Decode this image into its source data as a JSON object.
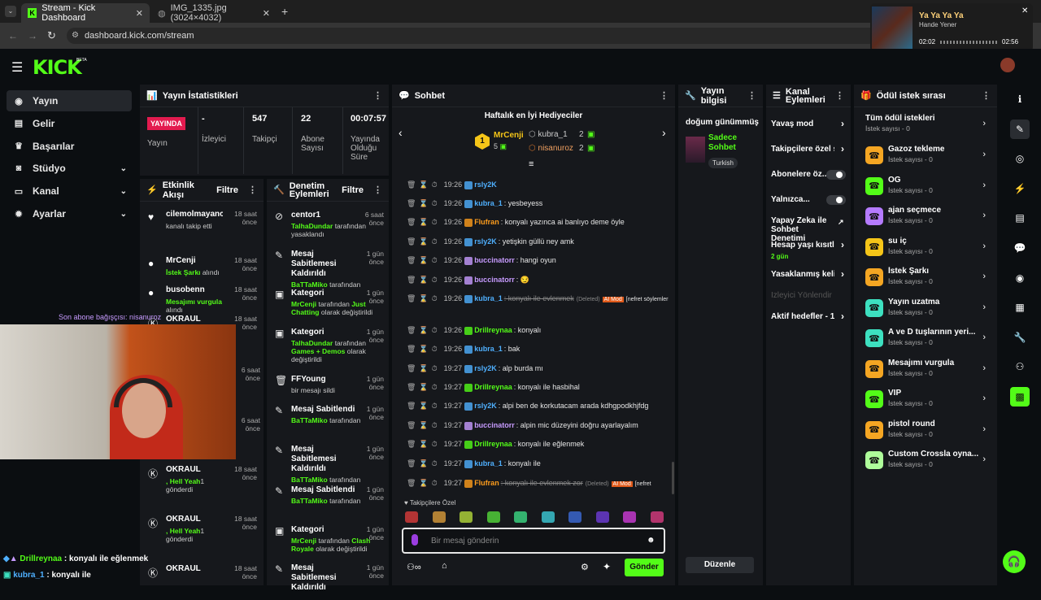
{
  "browser": {
    "tabs": [
      {
        "label": "Stream - Kick Dashboard"
      },
      {
        "label": "IMG_1335.jpg (3024×4032)"
      }
    ],
    "url": "dashboard.kick.com/stream",
    "media": {
      "title": "Ya Ya Ya Ya",
      "artist": "Hande Yener",
      "elapsed": "02:02",
      "duration": "02:56"
    }
  },
  "header": {
    "logo": "KICK",
    "logo_beta": "BETA"
  },
  "sidebar": {
    "items": [
      {
        "label": "Yayın",
        "icon": "play-circle-icon",
        "active": true
      },
      {
        "label": "Gelir",
        "icon": "wallet-icon"
      },
      {
        "label": "Başarılar",
        "icon": "trophy-icon"
      },
      {
        "label": "Stüdyo",
        "icon": "video-icon",
        "expandable": true
      },
      {
        "label": "Kanal",
        "icon": "monitor-icon",
        "expandable": true
      },
      {
        "label": "Ayarlar",
        "icon": "gear-icon",
        "expandable": true
      }
    ]
  },
  "stats": {
    "title": "Yayın İstatistikleri",
    "live_badge": "YAYINDA",
    "items": [
      {
        "value": "",
        "label": "Yayın"
      },
      {
        "value": "-",
        "label": "İzleyici"
      },
      {
        "value": "547",
        "label": "Takipçi"
      },
      {
        "value": "22",
        "label": "Abone Sayısı"
      },
      {
        "value": "00:07:57",
        "label": "Yayında Olduğu Süre"
      }
    ]
  },
  "activity": {
    "title": "Etkinlik Akışı",
    "filter": "Filtre",
    "items": [
      {
        "name": "cilemolmayancilem",
        "time": "18 saat önce",
        "desc": "kanalı takip etti",
        "icon": "heart-icon"
      },
      {
        "name": "MrCenji",
        "time": "18 saat önce",
        "desc_green": "İstek Şarkı",
        "desc": " alındı",
        "icon": "star-icon"
      },
      {
        "name": "busobenn",
        "time": "18 saat önce",
        "desc_green": "Mesajımı vurgula",
        "desc": " alındı",
        "icon": "star-icon"
      },
      {
        "name": "OKRAUL",
        "time": "18 saat önce",
        "icon": "kick-icon"
      },
      {
        "name": "OKRAUL",
        "time": "18 saat önce",
        "desc_green": ", Hell Yeah",
        "desc": "1 gönderdi",
        "icon": "kick-icon"
      },
      {
        "name": "OKRAUL",
        "time": "18 saat önce",
        "desc_green": ", Hell Yeah",
        "desc": "1 gönderdi",
        "icon": "kick-icon"
      },
      {
        "name": "OKRAUL",
        "time": "18 saat önce",
        "icon": "kick-icon"
      }
    ],
    "extra_times": [
      "6 saat önce",
      "6 saat önce"
    ]
  },
  "modlog": {
    "title": "Denetim Eylemleri",
    "filter": "Filtre",
    "items": [
      {
        "name": "centor1",
        "time": "6 saat önce",
        "actor": "TalhaDundar",
        "desc": " tarafından yasaklandı",
        "icon": "ban-icon"
      },
      {
        "name": "Mesaj Sabitlemesi Kaldırıldı",
        "time": "1 gün önce",
        "actor": "BaTTaMiko",
        "desc": " tarafından",
        "icon": "unpin-icon"
      },
      {
        "name": "Kategori",
        "time": "1 gün önce",
        "actor": "MrCenji",
        "desc": " tarafından ",
        "extra": "Just Chatting",
        "desc2": " olarak değiştirildi",
        "icon": "category-icon"
      },
      {
        "name": "Kategori",
        "time": "1 gün önce",
        "actor": "TalhaDundar",
        "desc": " tarafından ",
        "extra": "Games + Demos",
        "desc2": " olarak değiştirildi",
        "icon": "category-icon"
      },
      {
        "name": "FFYoung",
        "time": "1 gün önce",
        "desc": "bir mesajı sildi",
        "icon": "trash-icon"
      },
      {
        "name": "Mesaj Sabitlendi",
        "time": "1 gün önce",
        "actor": "BaTTaMiko",
        "desc": " tarafından",
        "icon": "pin-icon"
      },
      {
        "name": "Mesaj Sabitlemesi Kaldırıldı",
        "time": "1 gün önce",
        "actor": "BaTTaMiko",
        "desc": " tarafından",
        "icon": "unpin-icon"
      },
      {
        "name": "Mesaj Sabitlendi",
        "time": "1 gün önce",
        "actor": "BaTTaMiko",
        "desc": " tarafından",
        "icon": "pin-icon"
      },
      {
        "name": "Kategori",
        "time": "1 gün önce",
        "actor": "MrCenji",
        "desc": " tarafından ",
        "extra": "Clash Royale",
        "desc2": " olarak değiştirildi",
        "icon": "category-icon"
      },
      {
        "name": "Mesaj Sabitlemesi Kaldırıldı",
        "time": "1 gün önce",
        "icon": "unpin-icon"
      }
    ]
  },
  "chat": {
    "title": "Sohbet",
    "gifters_title": "Haftalık en İyi Hediyeciler",
    "gifters": [
      {
        "rank": "1",
        "name": "MrCenji",
        "count": "5"
      },
      {
        "rank": "",
        "name": "kubra_1",
        "count": "2"
      },
      {
        "rank": "",
        "name": "nisanuroz",
        "count": "2"
      }
    ],
    "messages": [
      {
        "time": "19:26",
        "user": "rsly2K",
        "color": "#4fb0ff",
        "text": ""
      },
      {
        "time": "19:26",
        "user": "kubra_1",
        "color": "#4fb0ff",
        "text": ": yesbeyess"
      },
      {
        "time": "19:26",
        "user": "Flufran",
        "color": "#ff9d1c",
        "text": ": konyalı yazınca ai banlıyo deme öyle"
      },
      {
        "time": "19:26",
        "user": "rsly2K",
        "color": "#4fb0ff",
        "text": ": yetişkin güllü ney amk"
      },
      {
        "time": "19:26",
        "user": "buccinatorr",
        "color": "#c79bff",
        "text": ": hangi oyun"
      },
      {
        "time": "19:26",
        "user": "buccinatorr",
        "color": "#c79bff",
        "text": ": 😏"
      },
      {
        "time": "19:26",
        "user": "kubra_1",
        "color": "#4fb0ff",
        "text": ": konyalı ile evlenmek",
        "deleted": "(Deleted)",
        "ai": "AI Mod",
        "reason": "[nefret söylemleri]"
      },
      {
        "time": "19:26",
        "user": "Drillreynaa",
        "color": "#53fc18",
        "text": ": konyalı"
      },
      {
        "time": "19:26",
        "user": "kubra_1",
        "color": "#4fb0ff",
        "text": ": bak"
      },
      {
        "time": "19:27",
        "user": "rsly2K",
        "color": "#4fb0ff",
        "text": ": alp burda mı"
      },
      {
        "time": "19:27",
        "user": "Drillreynaa",
        "color": "#53fc18",
        "text": ": konyalı ile hasbihal"
      },
      {
        "time": "19:27",
        "user": "rsly2K",
        "color": "#4fb0ff",
        "text": ": alpi ben de korkutacam arada kdhgpodkhjfdg"
      },
      {
        "time": "19:27",
        "user": "buccinatorr",
        "color": "#c79bff",
        "text": ": alpin mic düzeyini doğru ayarlayalım"
      },
      {
        "time": "19:27",
        "user": "Drillreynaa",
        "color": "#53fc18",
        "text": ": konyalı ile eğlenmek"
      },
      {
        "time": "19:27",
        "user": "kubra_1",
        "color": "#4fb0ff",
        "text": ": konyalı ile"
      },
      {
        "time": "19:27",
        "user": "Flufran",
        "color": "#ff9d1c",
        "text": ": konyalı ile evlenmek zor",
        "deleted": "(Deleted)",
        "ai": "AI Mod",
        "reason": "[nefret"
      }
    ],
    "emote_section": "Takipçilere Özel",
    "input_placeholder": "Bir mesaj gönderin",
    "send_label": "Gönder"
  },
  "info": {
    "title": "Yayın bilgisi",
    "stream_title": "doğum günümmüş",
    "category": "Sadece Sohbet",
    "tag": "Turkish",
    "edit": "Düzenle"
  },
  "channel": {
    "title": "Kanal Eylemleri",
    "rows": [
      {
        "label": "Yavaş mod",
        "type": "chevron"
      },
      {
        "label": "Takipçilere özel s",
        "type": "chevron"
      },
      {
        "label": "Abonelere öz...",
        "type": "toggle"
      },
      {
        "label": "Yalnızca...",
        "type": "toggle"
      },
      {
        "label": "Yapay Zeka ile Sohbet Denetimi",
        "type": "external"
      },
      {
        "label": "Hesap yaşı kısıtla",
        "sub": "2 gün",
        "type": "chevron"
      },
      {
        "label": "Yasaklanmış keli",
        "type": "chevron"
      },
      {
        "label": "İzleyici Yönlendir",
        "type": "disabled"
      },
      {
        "label": "Aktif hedefler - 1",
        "type": "chevron"
      }
    ]
  },
  "rewards": {
    "title": "Ödül istek sırası",
    "all_label": "Tüm ödül istekleri",
    "all_sub": "İstek sayısı - 0",
    "items": [
      {
        "name": "Gazoz tekleme",
        "sub": "İstek sayısı - 0",
        "color": "#f5a623"
      },
      {
        "name": "OG",
        "sub": "İstek sayısı - 0",
        "color": "#53fc18"
      },
      {
        "name": "ajan seçmece",
        "sub": "İstek sayısı - 0",
        "color": "#b57bff"
      },
      {
        "name": "su iç",
        "sub": "İstek sayısı - 0",
        "color": "#f5c518"
      },
      {
        "name": "İstek Şarkı",
        "sub": "İstek sayısı - 0",
        "color": "#f5a623"
      },
      {
        "name": "Yayın uzatma",
        "sub": "İstek sayısı - 0",
        "color": "#3de0c0"
      },
      {
        "name": "A ve D tuşlarının yeri...",
        "sub": "İstek sayısı - 0",
        "color": "#3de0c0"
      },
      {
        "name": "Mesajımı vurgula",
        "sub": "İstek sayısı - 0",
        "color": "#f5a623"
      },
      {
        "name": "VIP",
        "sub": "İstek sayısı - 0",
        "color": "#53fc18"
      },
      {
        "name": "pistol round",
        "sub": "İstek sayısı - 0",
        "color": "#f5a623"
      },
      {
        "name": "Custom Crossla oyna...",
        "sub": "İstek sayısı - 0",
        "color": "#aefc9a"
      }
    ]
  },
  "overlay": {
    "sub_gift": "Son abone bağışçısı: nisanuroz",
    "chat1_user": "Drillreynaa",
    "chat1_text": " : konyalı ile eğlenmek",
    "chat2_user": "kubra_1",
    "chat2_text": " : konyalı ile"
  },
  "colors": {
    "accent": "#53fc18",
    "panel": "#16181c",
    "bg": "#0b0e11"
  }
}
